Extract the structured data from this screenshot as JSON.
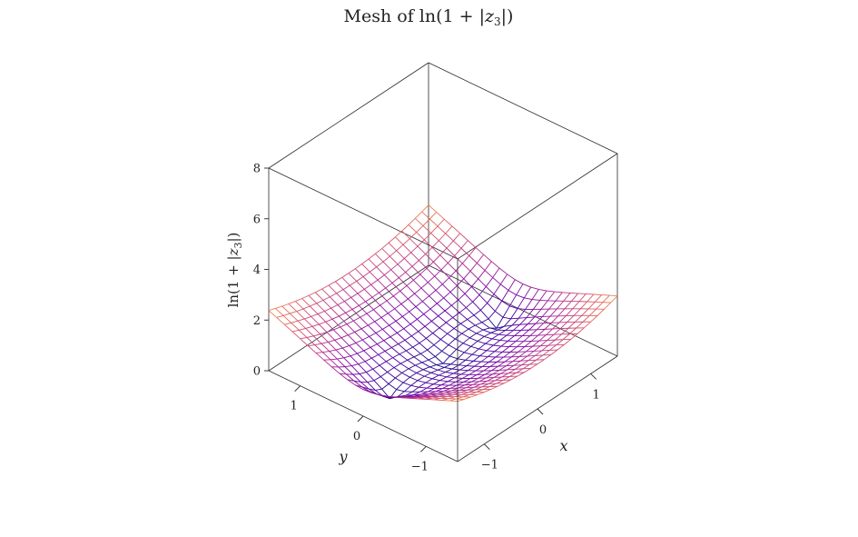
{
  "chart_data": {
    "type": "mesh",
    "title": "Mesh of ln(1 + |z3|)",
    "zlabel": "ln(1 + |z3|)",
    "xlabel": "x",
    "ylabel": "y",
    "xlim": [
      -1.5,
      1.5
    ],
    "ylim": [
      -1.5,
      1.5
    ],
    "zlim": [
      0,
      8
    ],
    "x_ticks": [
      {
        "value": -1,
        "label": "−1"
      },
      {
        "value": 0,
        "label": "0"
      },
      {
        "value": 1,
        "label": "1"
      }
    ],
    "y_ticks": [
      {
        "value": -1,
        "label": "−1"
      },
      {
        "value": 0,
        "label": "0"
      },
      {
        "value": 1,
        "label": "1"
      }
    ],
    "z_ticks": [
      {
        "value": 0,
        "label": "0"
      },
      {
        "value": 2,
        "label": "2"
      },
      {
        "value": 4,
        "label": "4"
      },
      {
        "value": 6,
        "label": "6"
      },
      {
        "value": 8,
        "label": "8"
      }
    ],
    "grid_points": 25,
    "colormap": [
      "#0d0887",
      "#6a00a8",
      "#b12a90",
      "#e16462",
      "#fca636",
      "#f0f921"
    ],
    "grid": false
  }
}
